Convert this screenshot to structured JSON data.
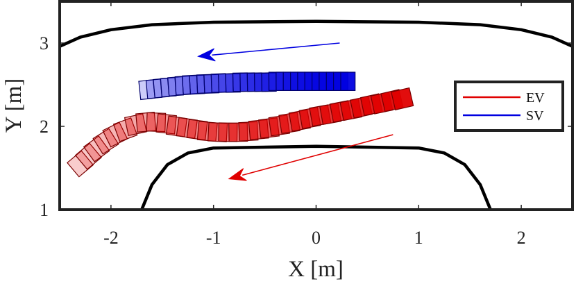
{
  "chart_data": {
    "type": "scatter",
    "title": "",
    "xlabel": "X [m]",
    "ylabel": "Y [m]",
    "xlim": [
      -2.5,
      2.5
    ],
    "ylim": [
      1,
      3.5
    ],
    "xticks": [
      -2,
      -1,
      0,
      1,
      2
    ],
    "yticks": [
      1,
      2,
      3
    ],
    "xtick_labels": [
      "-2",
      "-1",
      "0",
      "1",
      "2"
    ],
    "ytick_labels": [
      "1",
      "2",
      "3"
    ],
    "grid": false,
    "legend_position": "right",
    "legend": [
      {
        "name": "EV",
        "color": "#e00000"
      },
      {
        "name": "SV",
        "color": "#0000e0"
      }
    ],
    "series": [
      {
        "name": "EV",
        "color": "#e00000",
        "edge_color": "#7a0000",
        "vehicle_length": 0.18,
        "vehicle_width": 0.22,
        "x": [
          -2.3,
          -2.22,
          -2.14,
          -2.05,
          -1.96,
          -1.86,
          -1.76,
          -1.66,
          -1.56,
          -1.46,
          -1.36,
          -1.26,
          -1.16,
          -1.06,
          -0.96,
          -0.86,
          -0.76,
          -0.66,
          -0.56,
          -0.46,
          -0.36,
          -0.26,
          -0.16,
          -0.06,
          0.04,
          0.14,
          0.24,
          0.34,
          0.44,
          0.54,
          0.64,
          0.74,
          0.84
        ],
        "y": [
          1.55,
          1.64,
          1.73,
          1.82,
          1.9,
          1.96,
          2.02,
          2.05,
          2.05,
          2.03,
          2.0,
          1.98,
          1.96,
          1.94,
          1.93,
          1.93,
          1.93,
          1.94,
          1.96,
          1.98,
          2.01,
          2.04,
          2.07,
          2.1,
          2.13,
          2.15,
          2.18,
          2.2,
          2.23,
          2.26,
          2.28,
          2.31,
          2.33
        ],
        "heading_deg": [
          -40,
          -40,
          -36,
          -32,
          -26,
          -20,
          -12,
          -5,
          2,
          6,
          8,
          8,
          7,
          5,
          3,
          1,
          -1,
          -3,
          -5,
          -7,
          -8,
          -9,
          -10,
          -10,
          -10,
          -10,
          -11,
          -11,
          -12,
          -12,
          -12,
          -13,
          -13
        ]
      },
      {
        "name": "SV",
        "color": "#0000e0",
        "edge_color": "#00006a",
        "vehicle_length": 0.14,
        "vehicle_width": 0.22,
        "x": [
          -1.65,
          -1.58,
          -1.51,
          -1.44,
          -1.37,
          -1.3,
          -1.23,
          -1.16,
          -1.09,
          -1.02,
          -0.95,
          -0.88,
          -0.81,
          -0.74,
          -0.67,
          -0.6,
          -0.53,
          -0.46,
          -0.39,
          -0.32,
          -0.25,
          -0.18,
          -0.11,
          -0.04,
          0.03,
          0.1,
          0.17,
          0.24,
          0.31
        ],
        "y": [
          2.44,
          2.45,
          2.46,
          2.47,
          2.48,
          2.49,
          2.5,
          2.5,
          2.51,
          2.51,
          2.52,
          2.52,
          2.52,
          2.53,
          2.53,
          2.53,
          2.53,
          2.53,
          2.54,
          2.54,
          2.54,
          2.54,
          2.54,
          2.54,
          2.54,
          2.54,
          2.54,
          2.54,
          2.54
        ],
        "heading_deg": [
          -6,
          -5,
          -5,
          -4,
          -4,
          -3,
          -3,
          -3,
          -2,
          -2,
          -2,
          -2,
          -1,
          -1,
          -1,
          -1,
          -1,
          -1,
          0,
          0,
          0,
          0,
          0,
          0,
          0,
          0,
          0,
          0,
          0
        ]
      }
    ],
    "arrows": [
      {
        "color": "#0000e0",
        "from": [
          0.23,
          3.0
        ],
        "to": [
          -1.15,
          2.84
        ]
      },
      {
        "color": "#e00000",
        "from": [
          0.75,
          1.9
        ],
        "to": [
          -0.85,
          1.37
        ]
      }
    ],
    "road_boundaries": [
      {
        "name": "upper",
        "x": [
          -2.5,
          -2.3,
          -2.0,
          -1.6,
          -1.0,
          0,
          1.0,
          1.6,
          2.0,
          2.3,
          2.5
        ],
        "y": [
          2.96,
          3.07,
          3.16,
          3.22,
          3.25,
          3.26,
          3.25,
          3.22,
          3.16,
          3.07,
          2.96
        ]
      },
      {
        "name": "lower",
        "x": [
          -1.7,
          -1.6,
          -1.45,
          -1.25,
          -1.0,
          0,
          1.0,
          1.25,
          1.45,
          1.6,
          1.7
        ],
        "y": [
          1.0,
          1.3,
          1.54,
          1.68,
          1.74,
          1.76,
          1.74,
          1.68,
          1.54,
          1.3,
          1.0
        ]
      }
    ]
  }
}
